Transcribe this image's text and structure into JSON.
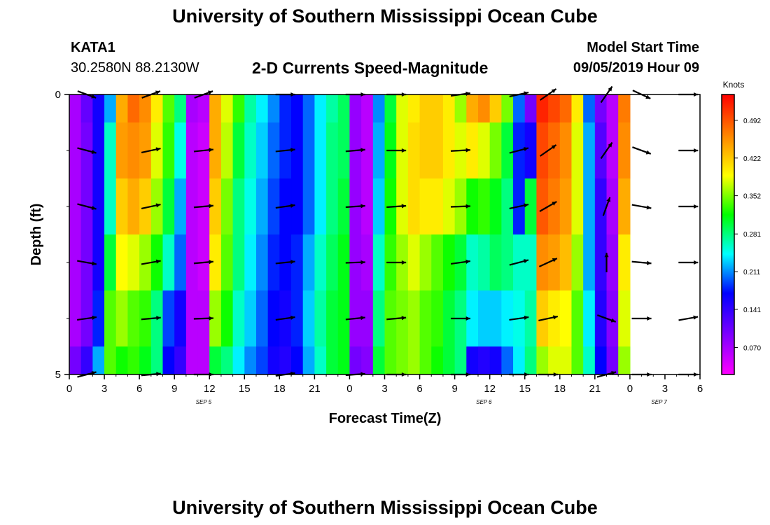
{
  "header": {
    "title": "University of Southern Mississippi Ocean Cube",
    "station_id": "KATA1",
    "station_coords": "30.2580N 88.2130W",
    "plot_title": "2-D Currents Speed-Magnitude",
    "model_label": "Model Start Time",
    "model_time": "09/05/2019 Hour 09"
  },
  "footer": {
    "title": "University of Southern Mississippi Ocean Cube"
  },
  "chart_data": {
    "type": "heatmap",
    "title": "2-D Currents Speed-Magnitude",
    "xlabel": "Forecast Time(Z)",
    "ylabel": "Depth (ft)",
    "ylim": [
      0,
      5
    ],
    "y_ticks": [
      "0",
      "5"
    ],
    "x_tick_labels": [
      "0",
      "3",
      "6",
      "9",
      "12",
      "15",
      "18",
      "21",
      "0",
      "3",
      "6",
      "9",
      "12",
      "15",
      "18",
      "21",
      "0",
      "3",
      "6"
    ],
    "date_labels": [
      {
        "label": "SEP 5",
        "at_tick": 11.5
      },
      {
        "label": "SEP 6",
        "at_tick": 35.5
      },
      {
        "label": "SEP 7",
        "at_tick": 50.5
      }
    ],
    "colorbar": {
      "unit": "Knots",
      "tick_labels": [
        "0.492",
        "0.422",
        "0.352",
        "0.281",
        "0.211",
        "0.141",
        "0.070"
      ],
      "tick_values": [
        0.492,
        0.422,
        0.352,
        0.281,
        0.211,
        0.141,
        0.07
      ],
      "vmin": 0.02,
      "vmax": 0.54
    },
    "speed_knots_by_hour": [
      [
        0.07,
        0.11,
        0.16,
        0.22,
        0.44,
        0.48,
        0.46,
        0.4,
        0.34,
        0.28,
        0.07,
        0.06,
        0.44,
        0.38,
        0.33,
        0.27,
        0.24,
        0.21,
        0.18,
        0.17,
        0.2,
        0.24,
        0.27,
        0.29,
        0.08,
        0.06,
        0.21,
        0.3,
        0.38,
        0.4,
        0.42,
        0.42,
        0.4,
        0.36,
        0.44,
        0.46,
        0.42,
        0.35,
        0.2,
        0.1,
        0.52,
        0.5,
        0.48,
        0.4,
        0.2,
        0.1,
        0.06,
        0.47
      ],
      [
        0.07,
        0.1,
        0.16,
        0.26,
        0.45,
        0.46,
        0.45,
        0.38,
        0.33,
        0.25,
        0.06,
        0.05,
        0.44,
        0.37,
        0.3,
        0.26,
        0.23,
        0.2,
        0.18,
        0.17,
        0.2,
        0.24,
        0.28,
        0.29,
        0.08,
        0.06,
        0.22,
        0.31,
        0.38,
        0.41,
        0.42,
        0.42,
        0.4,
        0.38,
        0.4,
        0.38,
        0.35,
        0.3,
        0.18,
        0.16,
        0.5,
        0.48,
        0.46,
        0.38,
        0.22,
        0.12,
        0.06,
        0.46
      ],
      [
        0.07,
        0.1,
        0.16,
        0.26,
        0.42,
        0.44,
        0.42,
        0.36,
        0.3,
        0.22,
        0.06,
        0.05,
        0.42,
        0.35,
        0.28,
        0.25,
        0.22,
        0.19,
        0.17,
        0.17,
        0.2,
        0.24,
        0.28,
        0.3,
        0.08,
        0.06,
        0.23,
        0.32,
        0.38,
        0.41,
        0.4,
        0.4,
        0.38,
        0.36,
        0.32,
        0.33,
        0.31,
        0.28,
        0.18,
        0.3,
        0.49,
        0.47,
        0.45,
        0.38,
        0.22,
        0.14,
        0.07,
        0.44
      ],
      [
        0.07,
        0.1,
        0.16,
        0.3,
        0.39,
        0.38,
        0.36,
        0.32,
        0.26,
        0.2,
        0.06,
        0.05,
        0.4,
        0.34,
        0.28,
        0.24,
        0.21,
        0.18,
        0.17,
        0.18,
        0.22,
        0.26,
        0.29,
        0.31,
        0.08,
        0.07,
        0.26,
        0.33,
        0.36,
        0.38,
        0.36,
        0.34,
        0.32,
        0.3,
        0.26,
        0.27,
        0.29,
        0.28,
        0.26,
        0.26,
        0.46,
        0.45,
        0.43,
        0.36,
        0.22,
        0.14,
        0.08,
        0.4
      ],
      [
        0.07,
        0.1,
        0.18,
        0.34,
        0.36,
        0.34,
        0.33,
        0.28,
        0.19,
        0.16,
        0.06,
        0.06,
        0.36,
        0.32,
        0.26,
        0.23,
        0.2,
        0.17,
        0.16,
        0.18,
        0.23,
        0.27,
        0.3,
        0.31,
        0.08,
        0.08,
        0.28,
        0.34,
        0.35,
        0.36,
        0.34,
        0.33,
        0.3,
        0.28,
        0.24,
        0.23,
        0.23,
        0.24,
        0.25,
        0.27,
        0.42,
        0.4,
        0.39,
        0.34,
        0.24,
        0.15,
        0.09,
        0.38
      ],
      [
        0.1,
        0.14,
        0.22,
        0.34,
        0.32,
        0.33,
        0.31,
        0.28,
        0.17,
        0.14,
        0.06,
        0.06,
        0.3,
        0.28,
        0.24,
        0.21,
        0.19,
        0.16,
        0.15,
        0.17,
        0.22,
        0.26,
        0.3,
        0.31,
        0.1,
        0.09,
        0.3,
        0.34,
        0.35,
        0.36,
        0.34,
        0.32,
        0.3,
        0.28,
        0.16,
        0.15,
        0.16,
        0.2,
        0.24,
        0.28,
        0.36,
        0.38,
        0.38,
        0.34,
        0.26,
        0.17,
        0.1,
        0.36
      ]
    ],
    "vectors": {
      "hours": [
        1.5,
        7,
        11.5,
        18.5,
        24.5,
        28,
        33.5,
        38.5,
        41,
        46,
        49,
        53
      ],
      "depth_rows": [
        0,
        1,
        2,
        3,
        4,
        5
      ],
      "direction_deg_math": [
        [
          -20,
          20,
          20,
          0,
          0,
          0,
          8,
          12,
          35,
          55,
          -25,
          0
        ],
        [
          -15,
          12,
          6,
          6,
          5,
          0,
          3,
          15,
          35,
          55,
          -20,
          0
        ],
        [
          -15,
          12,
          5,
          8,
          4,
          4,
          2,
          12,
          30,
          70,
          -10,
          0
        ],
        [
          -10,
          10,
          5,
          6,
          2,
          0,
          8,
          15,
          25,
          90,
          -5,
          0
        ],
        [
          8,
          5,
          2,
          8,
          6,
          5,
          0,
          8,
          12,
          -20,
          0,
          10
        ],
        [
          15,
          5,
          0,
          8,
          4,
          0,
          0,
          0,
          0,
          15,
          0,
          0
        ]
      ]
    }
  }
}
